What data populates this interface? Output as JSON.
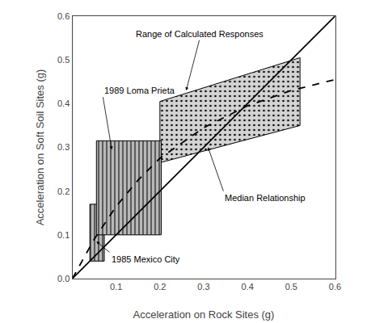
{
  "chart_data": {
    "type": "line",
    "xlabel": "Acceleration on Rock Sites (g)",
    "ylabel": "Acceleration on Soft Soil Sites (g)",
    "xlim": [
      0,
      0.6
    ],
    "ylim": [
      0,
      0.6
    ],
    "xticks": [
      0.1,
      0.2,
      0.3,
      0.4,
      0.5,
      0.6
    ],
    "yticks": [
      {
        "value": 0,
        "label": "0.0"
      },
      0.1,
      0.2,
      0.3,
      0.4,
      0.5,
      0.6
    ],
    "grid": false,
    "series": [
      {
        "x": [
          0,
          0.6
        ],
        "values": [
          0,
          0.6
        ],
        "color": "#000000",
        "line_style": "solid"
      },
      {
        "x": [
          0.0,
          0.05,
          0.1,
          0.15,
          0.2,
          0.3,
          0.4,
          0.5,
          0.6
        ],
        "values": [
          0.0,
          0.09,
          0.165,
          0.225,
          0.275,
          0.345,
          0.395,
          0.43,
          0.455
        ],
        "color": "#000000",
        "line_style": "dashed"
      }
    ],
    "polygon": {
      "points": [
        [
          0.2,
          0.265
        ],
        [
          0.2,
          0.405
        ],
        [
          0.52,
          0.505
        ],
        [
          0.52,
          0.35
        ]
      ],
      "color": "#d4d4d4"
    },
    "rectangles": [
      {
        "x": 0.04,
        "y": 0.04,
        "width": 0.033,
        "height": 0.13,
        "color": "#b8b8b8"
      },
      {
        "x": 0.055,
        "y": 0.1,
        "width": 0.148,
        "height": 0.215,
        "color": "#b8b8b8"
      }
    ],
    "annotations": [
      {
        "text": "Range of Calculated Responses",
        "x": 0.29,
        "y": 0.545,
        "arrow_x": 0.26,
        "arrow_y": 0.43
      },
      {
        "text": "Median Relationship",
        "x": 0.345,
        "y": 0.2,
        "arrow_x": 0.31,
        "arrow_y": 0.3
      },
      {
        "text": "1989 Loma Prieta",
        "x": 0.07,
        "y": 0.415,
        "arrow_x": 0.09,
        "arrow_y": 0.295
      },
      {
        "text": "1985 Mexico City",
        "x": 0.085,
        "y": 0.06,
        "arrow_x": 0.055,
        "arrow_y": 0.085
      }
    ]
  }
}
